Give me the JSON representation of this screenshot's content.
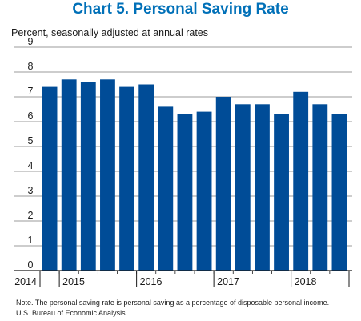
{
  "chart_data": {
    "type": "bar",
    "title": "Chart 5. Personal Saving Rate",
    "subtitle": "Percent, seasonally adjusted at annual rates",
    "categories": [
      "2014 Q4",
      "2015 Q1",
      "2015 Q2",
      "2015 Q3",
      "2015 Q4",
      "2016 Q1",
      "2016 Q2",
      "2016 Q3",
      "2016 Q4",
      "2017 Q1",
      "2017 Q2",
      "2017 Q3",
      "2017 Q4",
      "2018 Q1",
      "2018 Q2",
      "2018 Q3"
    ],
    "values": [
      7.4,
      7.7,
      7.6,
      7.7,
      7.4,
      7.5,
      6.6,
      6.3,
      6.4,
      7.0,
      6.7,
      6.7,
      6.3,
      7.2,
      6.7,
      6.3
    ],
    "year_labels": [
      {
        "label": "2014",
        "start": 0,
        "end": 0
      },
      {
        "label": "2015",
        "start": 1,
        "end": 4
      },
      {
        "label": "2016",
        "start": 5,
        "end": 8
      },
      {
        "label": "2017",
        "start": 9,
        "end": 12
      },
      {
        "label": "2018",
        "start": 13,
        "end": 15
      }
    ],
    "yticks": [
      0,
      1,
      2,
      3,
      4,
      5,
      6,
      7,
      8,
      9
    ],
    "ylim": [
      0,
      9
    ],
    "grid": true,
    "bar_color": "#004c97",
    "title_color": "#0070b8",
    "note": "Note. The personal saving rate is personal saving as a percentage of disposable personal income.",
    "source": "U.S. Bureau of Economic Analysis"
  }
}
